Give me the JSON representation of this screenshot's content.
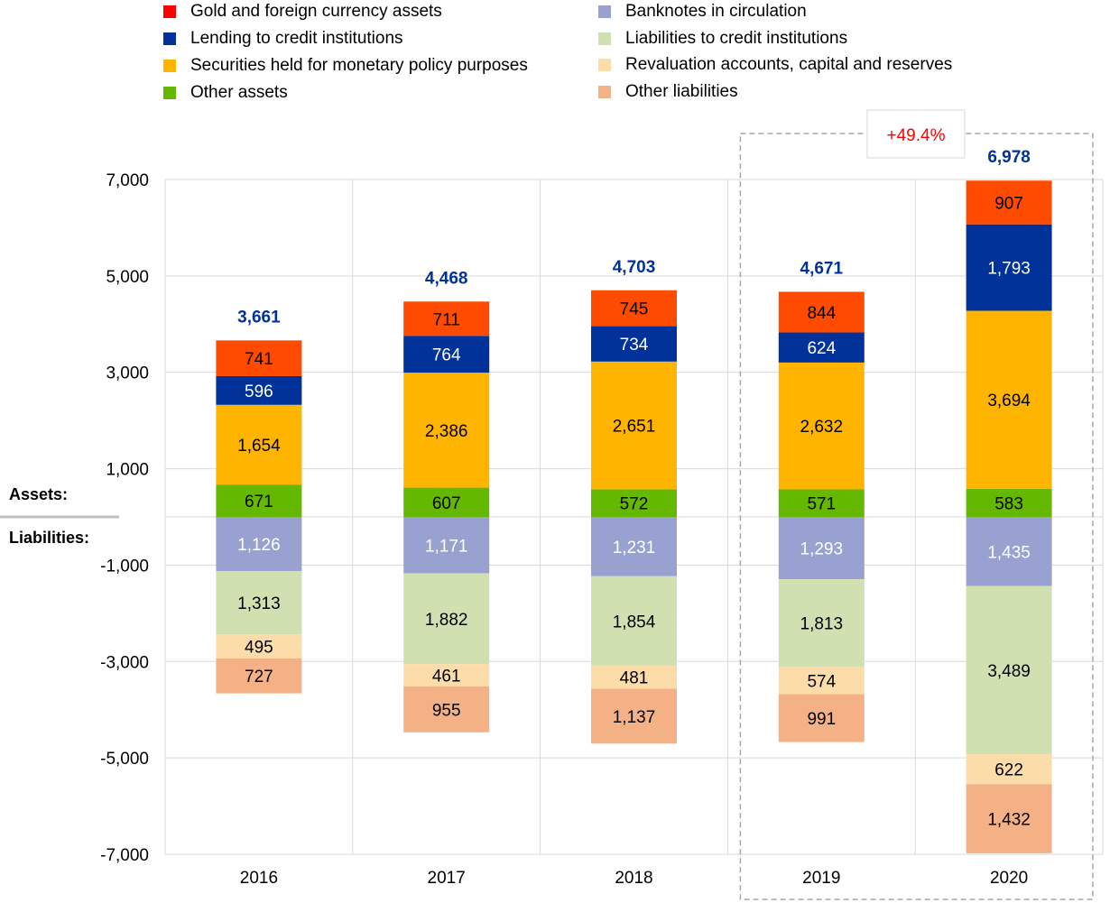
{
  "chart_data": {
    "type": "bar",
    "stacked": true,
    "title": "",
    "categories": [
      "2016",
      "2017",
      "2018",
      "2019",
      "2020"
    ],
    "ylim": [
      -7000,
      7000
    ],
    "yticks": [
      7000,
      5000,
      3000,
      1000,
      -1000,
      -3000,
      -5000,
      -7000
    ],
    "ytick_labels": [
      "7,000",
      "5,000",
      "3,000",
      "1,000",
      "-1,000",
      "-3,000",
      "-5,000",
      "-7,000"
    ],
    "grid": true,
    "legend_position": "top",
    "side_labels": {
      "assets": "Assets:",
      "liabilities": "Liabilities:"
    },
    "totals": [
      "3,661",
      "4,468",
      "4,703",
      "4,671",
      "6,978"
    ],
    "total_color": "#003299",
    "annotation": {
      "text": "+49.4%",
      "color": "#FF0000",
      "highlighted_categories": [
        "2019",
        "2020"
      ]
    },
    "assets": [
      {
        "name": "Other assets",
        "color": "#65B800",
        "legend_color": "#65B800",
        "label_color": "#000",
        "values": [
          671,
          607,
          572,
          571,
          583
        ]
      },
      {
        "name": "Securities held for monetary policy purposes",
        "color": "#FFB400",
        "legend_color": "#FFB400",
        "label_color": "#000",
        "values": [
          1654,
          2386,
          2651,
          2632,
          3694
        ]
      },
      {
        "name": "Lending to credit institutions",
        "color": "#003299",
        "legend_color": "#003299",
        "label_color": "#fff",
        "values": [
          596,
          764,
          734,
          624,
          1793
        ]
      },
      {
        "name": "Gold and foreign currency assets",
        "color": "#FF4B00",
        "legend_color": "#FF0000",
        "label_color": "#000",
        "values": [
          741,
          711,
          745,
          844,
          907
        ]
      }
    ],
    "liabilities": [
      {
        "name": "Banknotes in circulation",
        "color": "#98A1D0",
        "legend_color": "#98A1D0",
        "label_color": "#fff",
        "values": [
          1126,
          1171,
          1231,
          1293,
          1435
        ]
      },
      {
        "name": "Liabilities to credit institutions",
        "color": "#D1E0B0",
        "legend_color": "#D1E0B0",
        "label_color": "#000",
        "values": [
          1313,
          1882,
          1854,
          1813,
          3489
        ]
      },
      {
        "name": "Revaluation accounts, capital and reserves",
        "color": "#FCDCA9",
        "legend_color": "#FCDCA9",
        "label_color": "#000",
        "values": [
          495,
          461,
          481,
          574,
          622
        ]
      },
      {
        "name": "Other liabilities",
        "color": "#F3B185",
        "legend_color": "#F3B185",
        "label_color": "#000",
        "values": [
          727,
          955,
          1137,
          991,
          1432
        ]
      }
    ],
    "legend_order_left": [
      "Gold and foreign currency assets",
      "Lending to credit institutions",
      "Securities held for monetary policy purposes",
      "Other assets"
    ],
    "legend_order_right": [
      "Banknotes in circulation",
      "Liabilities to credit institutions",
      "Revaluation accounts, capital and reserves",
      "Other liabilities"
    ]
  }
}
